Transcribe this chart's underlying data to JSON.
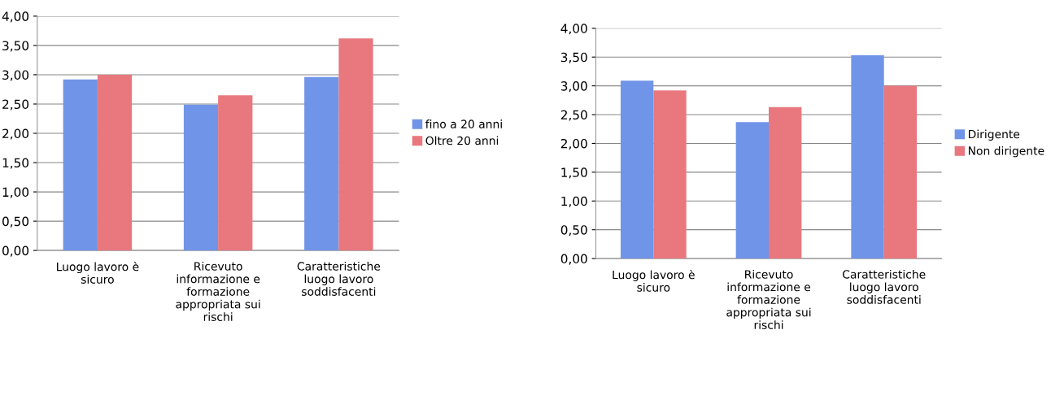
{
  "chart_data": [
    {
      "type": "bar",
      "categories": [
        "Luogo lavoro è\nsicuro",
        "Ricevuto\ninformazione e\nformazione\nappropriata sui\nrischi",
        "Caratteristiche\nluogo lavoro\nsoddisfacenti"
      ],
      "series": [
        {
          "name": "fino a 20 anni",
          "color": "#7094e8",
          "values": [
            2.92,
            2.49,
            2.96
          ]
        },
        {
          "name": "Oltre 20 anni",
          "color": "#e8787e",
          "values": [
            3.0,
            2.65,
            3.62
          ]
        }
      ],
      "ylim": [
        0,
        4
      ],
      "yticks": [
        {
          "value": 0,
          "label": "0,00"
        },
        {
          "value": 0.5,
          "label": "0,50"
        },
        {
          "value": 1,
          "label": "1,00"
        },
        {
          "value": 1.5,
          "label": "1,50"
        },
        {
          "value": 2,
          "label": "2,00"
        },
        {
          "value": 2.5,
          "label": "2,50"
        },
        {
          "value": 3,
          "label": "3,00"
        },
        {
          "value": 3.5,
          "label": "3,50"
        },
        {
          "value": 4,
          "label": "4,00"
        }
      ],
      "grid": "y",
      "legend": "right"
    },
    {
      "type": "bar",
      "categories": [
        "Luogo lavoro è\nsicuro",
        "Ricevuto\ninformazione e\nformazione\nappropriata sui\nrischi",
        "Caratteristiche\nluogo lavoro\nsoddisfacenti"
      ],
      "series": [
        {
          "name": "Dirigente",
          "color": "#7094e8",
          "values": [
            3.09,
            2.37,
            3.53
          ]
        },
        {
          "name": "Non dirigente",
          "color": "#e8787e",
          "values": [
            2.92,
            2.63,
            3.0
          ]
        }
      ],
      "ylim": [
        0,
        4
      ],
      "yticks": [
        {
          "value": 0,
          "label": "0,00"
        },
        {
          "value": 0.5,
          "label": "0,50"
        },
        {
          "value": 1,
          "label": "1,00"
        },
        {
          "value": 1.5,
          "label": "1,50"
        },
        {
          "value": 2,
          "label": "2,00"
        },
        {
          "value": 2.5,
          "label": "2,50"
        },
        {
          "value": 3,
          "label": "3,00"
        },
        {
          "value": 3.5,
          "label": "3,50"
        },
        {
          "value": 4,
          "label": "4,00"
        }
      ],
      "grid": "y",
      "legend": "right"
    }
  ]
}
